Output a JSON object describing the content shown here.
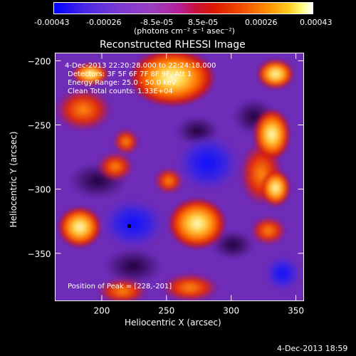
{
  "colorbar": {
    "tick_labels": [
      "-0.00043",
      "-0.00026",
      "-8.5e-05",
      "8.5e-05",
      "0.00026",
      "0.00043"
    ],
    "units": "(photons cm⁻² s⁻¹ asec⁻²)",
    "min": -0.00043,
    "max": 0.00043
  },
  "chart_data": {
    "type": "heatmap",
    "title": "Reconstructed RHESSI Image",
    "xlabel": "Heliocentric X (arcsec)",
    "ylabel": "Heliocentric Y (arcsec)",
    "xlim": [
      164,
      356
    ],
    "ylim": [
      -387,
      -194
    ],
    "xticks": [
      200,
      250,
      300,
      350
    ],
    "yticks": [
      -200,
      -250,
      -300,
      -350
    ],
    "peak": [
      228,
      -201
    ],
    "annotations": {
      "time_range": "4-Dec-2013 22:20:28.000 to 22:24:18.000",
      "detectors": "Detectors: 3F 5F 6F 7F 8F 9F, Att 1",
      "energy": "Energy Range: 25.0 - 50.0 keV",
      "clean": "Clean     Total counts: 1.33E+04",
      "peak_label": "Position of Peak = [228,-201]"
    }
  },
  "footer": {
    "timestamp": "4-Dec-2013 18:59"
  }
}
